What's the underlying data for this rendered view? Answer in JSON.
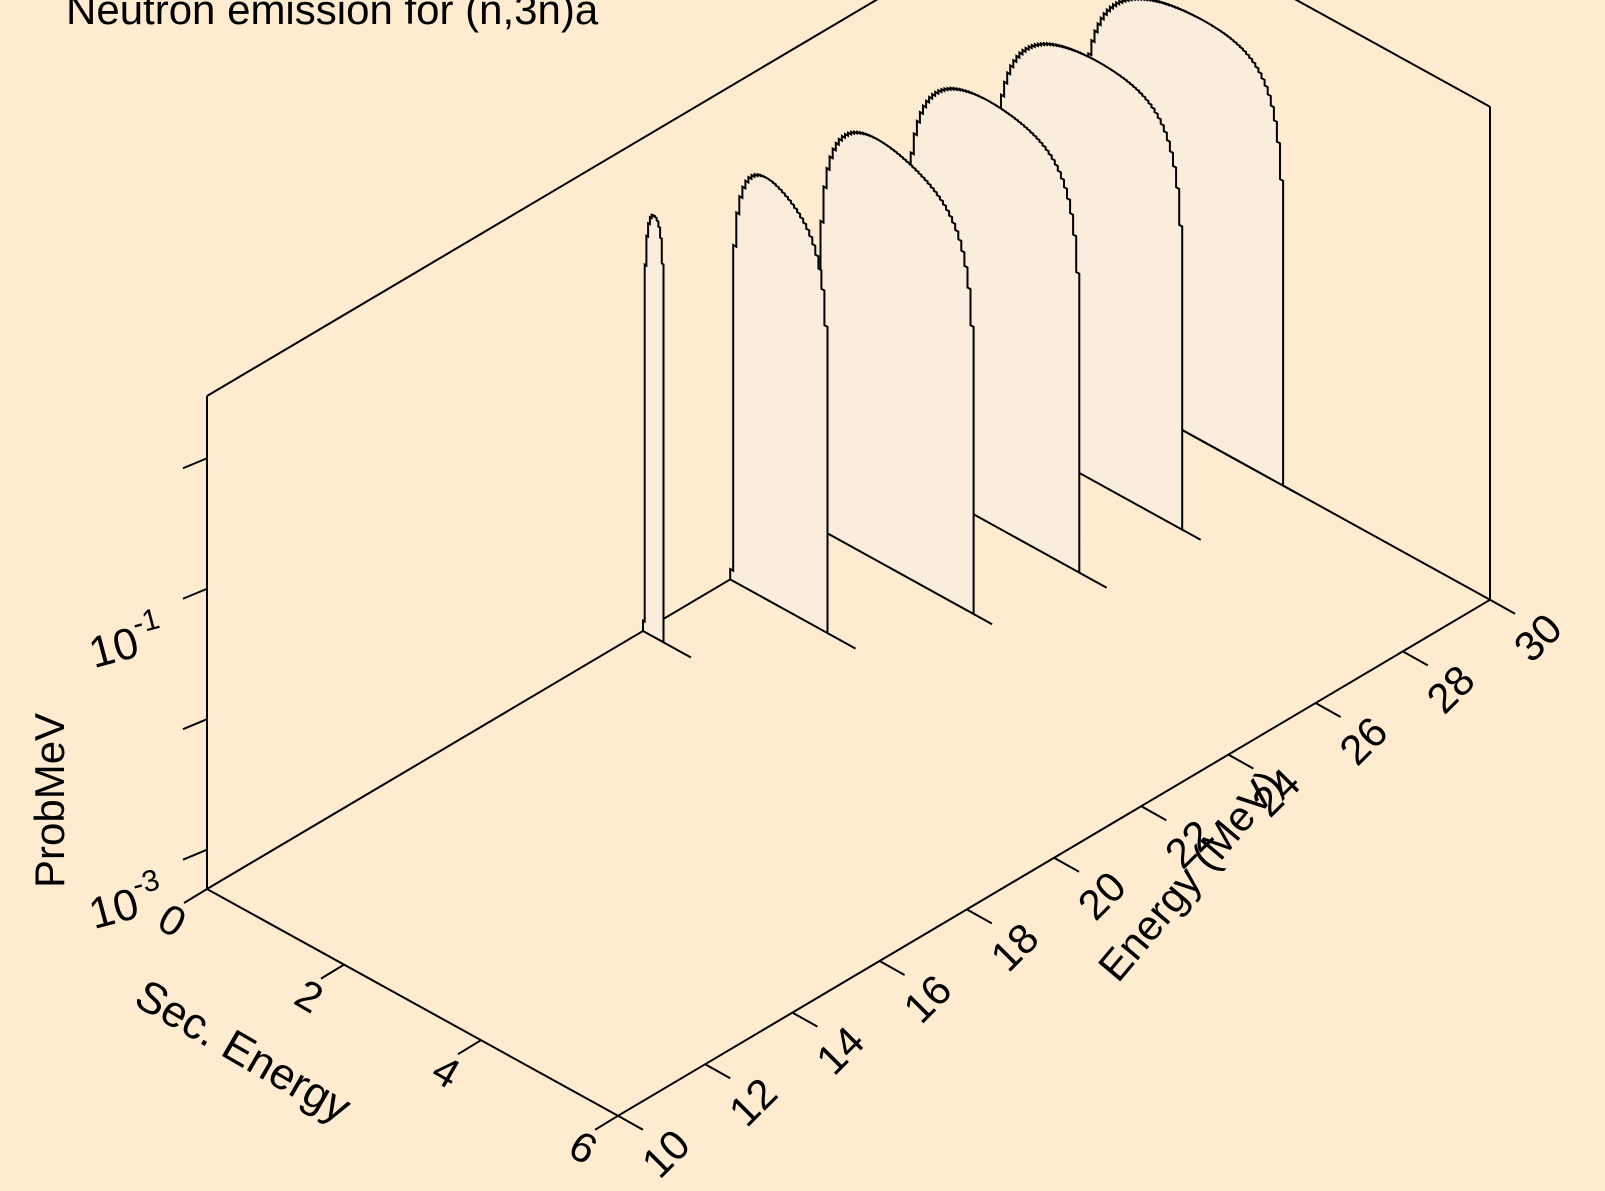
{
  "chart_data": {
    "type": "area",
    "title": "Neutron emission for (n,3n)a",
    "xlabel": "Sec. Energy",
    "ylabel": "Energy (MeV)",
    "zlabel": "ProbMeV",
    "x_ticks": [
      "0",
      "2",
      "4",
      "6"
    ],
    "y_ticks": [
      "10",
      "12",
      "14",
      "16",
      "18",
      "20",
      "22",
      "24",
      "26",
      "28",
      "30"
    ],
    "z_ticks": [
      {
        "base": "10",
        "exp": "-3"
      },
      {
        "base": "10",
        "exp": "-1"
      }
    ],
    "x_range": [
      0,
      6
    ],
    "y_range": [
      10,
      30
    ],
    "z_scale": "log",
    "z_range": [
      0.0005,
      3
    ],
    "background_color": "#ffebcf",
    "fill_color": "#fbeddc",
    "series": [
      {
        "energy": 20,
        "max_sec_energy": 0.3,
        "tail_end": 0.7,
        "peak": 0.15
      },
      {
        "energy": 22,
        "max_sec_energy": 1.42,
        "tail_end": 1.83,
        "peak": 0.5
      },
      {
        "energy": 24,
        "max_sec_energy": 2.28,
        "tail_end": 2.55,
        "peak": 0.85
      },
      {
        "energy": 26,
        "max_sec_energy": 2.55,
        "tail_end": 2.95,
        "peak": 1.2
      },
      {
        "energy": 28,
        "max_sec_energy": 2.78,
        "tail_end": 3.05,
        "peak": 1.55
      },
      {
        "energy": 30,
        "max_sec_energy": 2.98,
        "tail_end": 3.25,
        "peak": 1.9
      }
    ]
  }
}
